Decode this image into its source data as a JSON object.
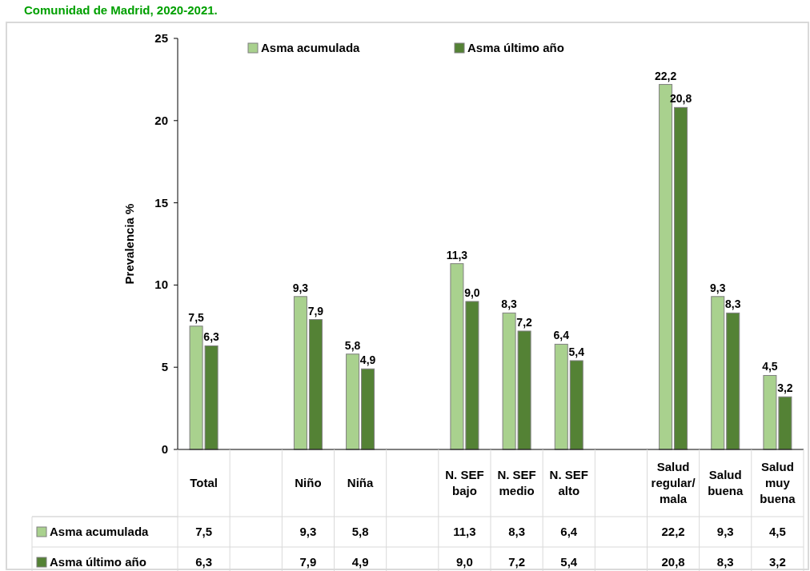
{
  "chart_data": {
    "type": "bar",
    "title": "Comunidad de Madrid, 2020-2021.",
    "ylabel": "Prevalencia %",
    "categories": [
      "Total",
      null,
      "Niño",
      "Niña",
      null,
      "N. SEF bajo",
      "N. SEF medio",
      "N. SEF alto",
      null,
      "Salud regular/mala",
      "Salud buena",
      "Salud muy buena"
    ],
    "series": [
      {
        "name": "Asma acumulada",
        "color": "#a9d18e",
        "values": [
          7.5,
          null,
          9.3,
          5.8,
          null,
          11.3,
          8.3,
          6.4,
          null,
          22.2,
          9.3,
          4.5
        ],
        "value_labels": [
          "7,5",
          null,
          "9,3",
          "5,8",
          null,
          "11,3",
          "8,3",
          "6,4",
          null,
          "22,2",
          "9,3",
          "4,5"
        ]
      },
      {
        "name": "Asma último año",
        "color": "#548235",
        "values": [
          6.3,
          null,
          7.9,
          4.9,
          null,
          9.0,
          7.2,
          5.4,
          null,
          20.8,
          8.3,
          3.2
        ],
        "value_labels": [
          "6,3",
          null,
          "7,9",
          "4,9",
          null,
          "9,0",
          "7,2",
          "5,4",
          null,
          "20,8",
          "8,3",
          "3,2"
        ]
      }
    ],
    "ylim": [
      0,
      25
    ],
    "yticks": [
      0,
      5,
      10,
      15,
      20,
      25
    ],
    "grid": false,
    "legend": "top"
  }
}
